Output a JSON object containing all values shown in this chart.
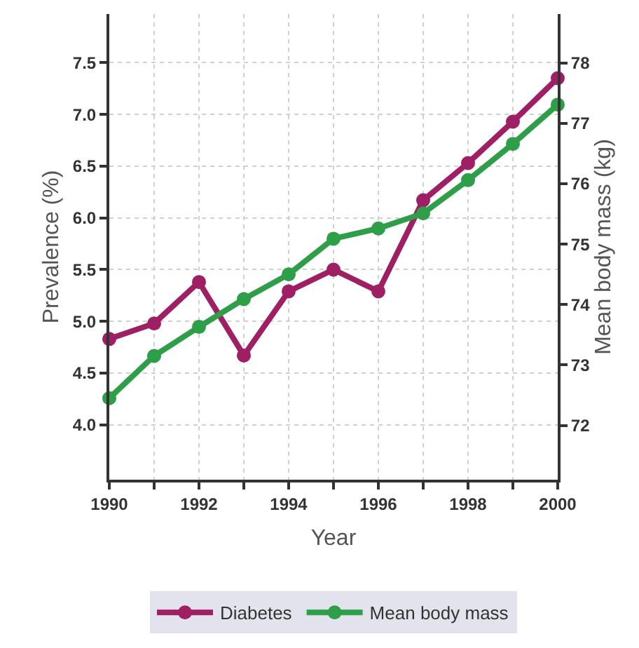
{
  "chart_data": {
    "type": "line",
    "xlabel": "Year",
    "ylabel": "Prevalence (%)",
    "y2label": "Mean body mass (kg)",
    "x": [
      1990,
      1991,
      1992,
      1993,
      1994,
      1995,
      1996,
      1997,
      1998,
      1999,
      2000
    ],
    "series": [
      {
        "name": "Diabetes",
        "color": "#9e1f63",
        "values": [
          4.83,
          4.98,
          5.38,
          4.67,
          5.29,
          5.5,
          5.29,
          6.17,
          6.53,
          6.93,
          7.35
        ]
      },
      {
        "name": "Mean body mass",
        "color": "#2e9e48",
        "axis": "y2",
        "values": [
          72.45,
          73.15,
          73.63,
          74.09,
          74.5,
          75.09,
          75.26,
          75.51,
          76.06,
          76.66,
          77.31
        ]
      }
    ],
    "xlim": [
      1990,
      2000
    ],
    "xticks": [
      1990,
      {
        "value": 1991,
        "label": null
      },
      1992,
      {
        "value": 1993,
        "label": null
      },
      1994,
      {
        "value": 1995,
        "label": null
      },
      1996,
      {
        "value": 1997,
        "label": null
      },
      1998,
      {
        "value": 1999,
        "label": null
      },
      2000
    ],
    "ylim": [
      3.47,
      7.97
    ],
    "yticks": [
      {
        "value": 4,
        "label": "4.0"
      },
      4.5,
      {
        "value": 5,
        "label": "5.0"
      },
      5.5,
      {
        "value": 6,
        "label": "6.0"
      },
      6.5,
      {
        "value": 7,
        "label": "7.0"
      },
      7.5
    ],
    "y2lim": [
      71.1,
      78.81
    ],
    "y2ticks": [
      72,
      73,
      74,
      75,
      76,
      77,
      78
    ],
    "grid": true,
    "legend": "bottom",
    "marker": "circle",
    "line_style": "solid"
  }
}
